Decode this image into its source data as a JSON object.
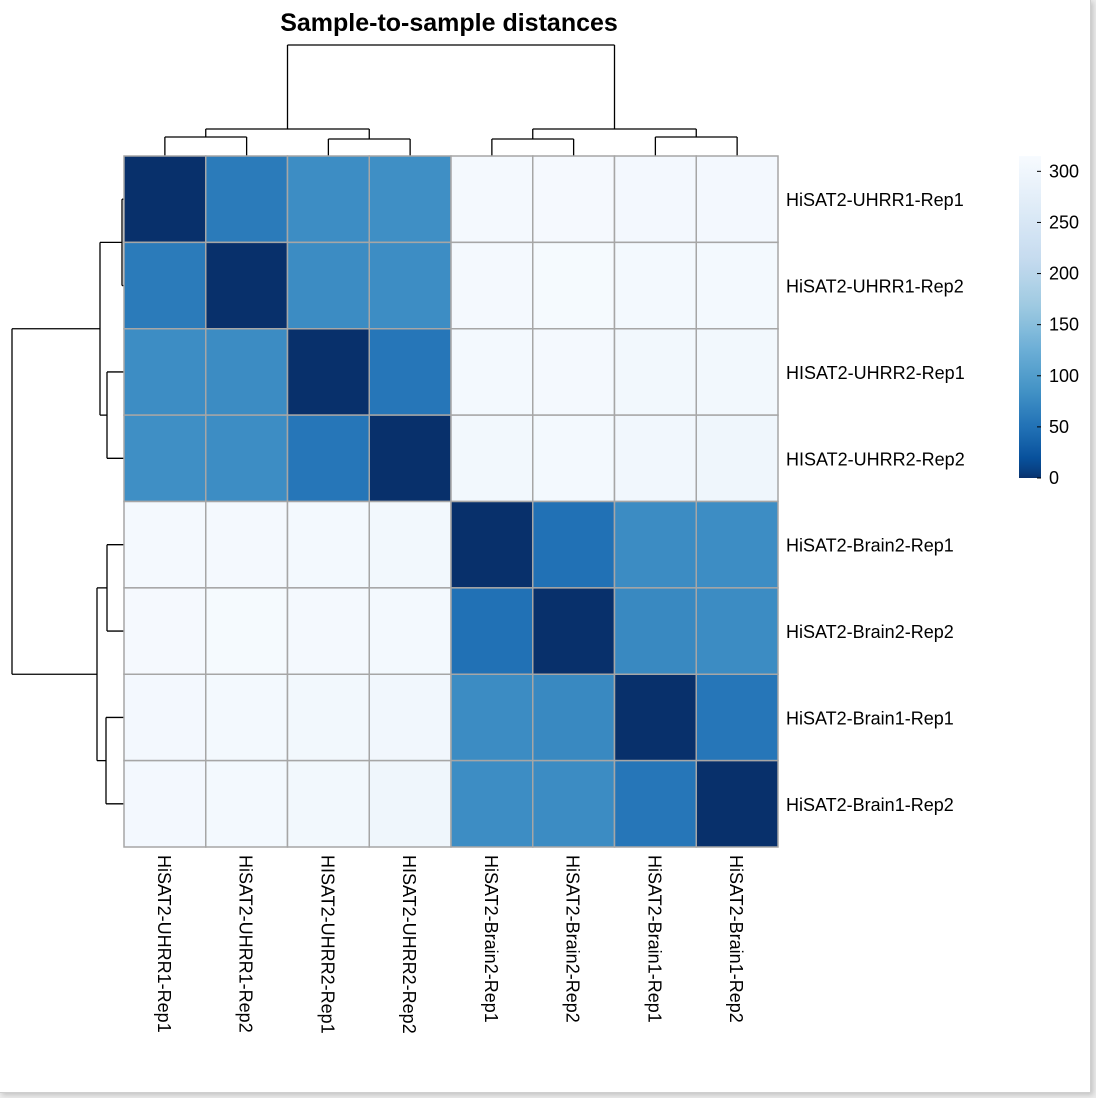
{
  "chart_data": {
    "type": "heatmap",
    "title": "Sample-to-sample distances",
    "rows": [
      "HiSAT2-UHRR1-Rep1",
      "HiSAT2-UHRR1-Rep2",
      "HISAT2-UHRR2-Rep1",
      "HISAT2-UHRR2-Rep2",
      "HiSAT2-Brain2-Rep1",
      "HiSAT2-Brain2-Rep2",
      "HiSAT2-Brain1-Rep1",
      "HiSAT2-Brain1-Rep2"
    ],
    "columns": [
      "HiSAT2-UHRR1-Rep1",
      "HiSAT2-UHRR1-Rep2",
      "HISAT2-UHRR2-Rep1",
      "HISAT2-UHRR2-Rep2",
      "HiSAT2-Brain2-Rep1",
      "HiSAT2-Brain2-Rep2",
      "HiSAT2-Brain1-Rep1",
      "HiSAT2-Brain1-Rep2"
    ],
    "values": [
      [
        0,
        60,
        80,
        82,
        308,
        310,
        306,
        306
      ],
      [
        60,
        0,
        78,
        80,
        309,
        311,
        307,
        307
      ],
      [
        80,
        78,
        0,
        55,
        307,
        309,
        305,
        305
      ],
      [
        82,
        80,
        55,
        0,
        305,
        307,
        303,
        298
      ],
      [
        308,
        309,
        307,
        305,
        0,
        50,
        78,
        80
      ],
      [
        310,
        311,
        309,
        307,
        50,
        0,
        75,
        78
      ],
      [
        306,
        307,
        305,
        303,
        78,
        75,
        0,
        55
      ],
      [
        306,
        307,
        305,
        298,
        80,
        78,
        55,
        0
      ]
    ],
    "legend": {
      "ticks": [
        300,
        250,
        200,
        150,
        100,
        50,
        0
      ],
      "min": 0,
      "max": 315
    },
    "colors": {
      "low": "#08306b",
      "high": "#f7fbff",
      "grid": "#a6a6a6"
    }
  }
}
